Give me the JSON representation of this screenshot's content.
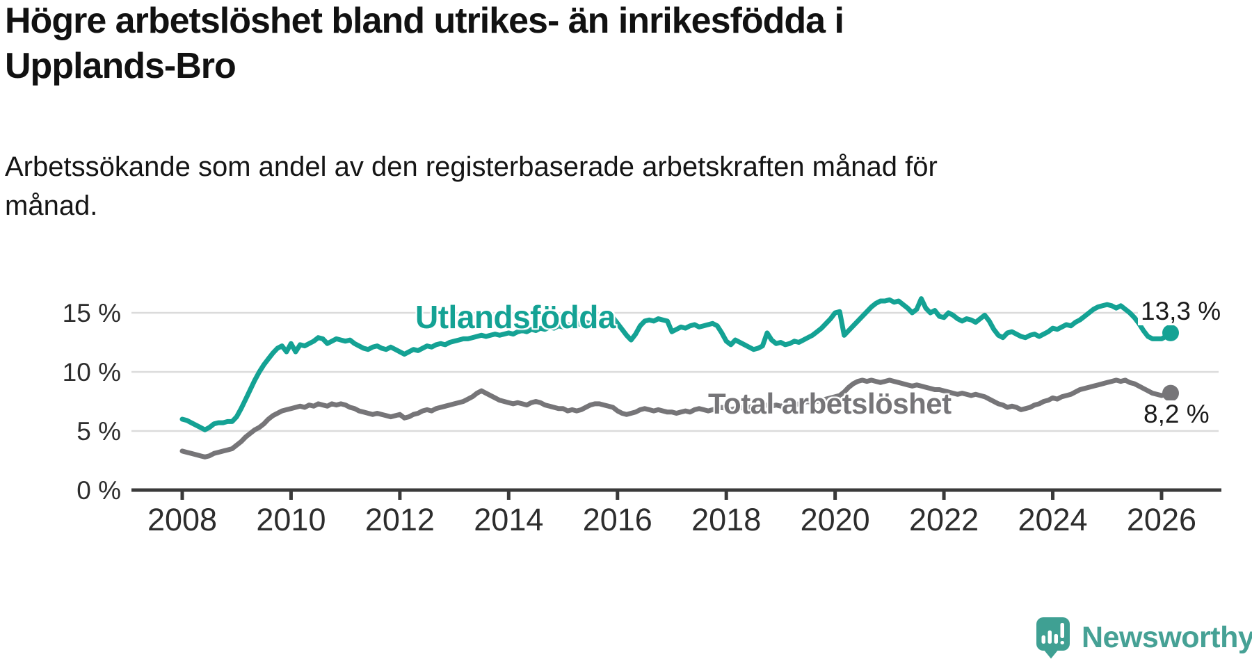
{
  "header": {
    "title_lines": [
      "Högre arbetslöshet bland utrikes- än inrikesfödda i",
      "Upplands-Bro"
    ],
    "subtitle_lines": [
      "Arbetssökande som andel av den registerbaserade arbetskraften månad för",
      "månad."
    ]
  },
  "footer": {
    "brand": "Newsworthy",
    "logo_icon": "newsworthy-speech-bubble-bar-chart-icon"
  },
  "colors": {
    "foreign_born_line": "#14A294",
    "total_line": "#767578",
    "brand": "#46A195",
    "grid": "#DBDBDB",
    "axis": "#3A3A3A",
    "tick_text": "#2D2D2D",
    "text": "#151515"
  },
  "chart_data": {
    "type": "line",
    "frequency": "monthly",
    "x_start": "2008-01",
    "x_end": "2026-03",
    "ylabel": "",
    "xlabel": "",
    "unit": "percent",
    "ylim": [
      0,
      16.5
    ],
    "grid": "horizontal",
    "legend_position": "inline-labels",
    "yticks": [
      {
        "value": 0,
        "label": "0 %"
      },
      {
        "value": 5,
        "label": "5 %"
      },
      {
        "value": 10,
        "label": "10 %"
      },
      {
        "value": 15,
        "label": "15 %"
      }
    ],
    "xticks": [
      {
        "year": 2008,
        "label": "2008"
      },
      {
        "year": 2010,
        "label": "2010"
      },
      {
        "year": 2012,
        "label": "2012"
      },
      {
        "year": 2014,
        "label": "2014"
      },
      {
        "year": 2016,
        "label": "2016"
      },
      {
        "year": 2018,
        "label": "2018"
      },
      {
        "year": 2020,
        "label": "2020"
      },
      {
        "year": 2022,
        "label": "2022"
      },
      {
        "year": 2024,
        "label": "2024"
      },
      {
        "year": 2026,
        "label": "2026"
      }
    ],
    "series": [
      {
        "name": "Utlandsfödda",
        "color": "#14A294",
        "end_label": "13,3 %",
        "end_value": 13.3,
        "values": [
          6.0,
          5.9,
          5.7,
          5.5,
          5.3,
          5.1,
          5.3,
          5.6,
          5.7,
          5.7,
          5.8,
          5.8,
          6.2,
          6.9,
          7.7,
          8.5,
          9.3,
          10.0,
          10.6,
          11.1,
          11.6,
          12.0,
          12.2,
          11.7,
          12.4,
          11.7,
          12.3,
          12.2,
          12.4,
          12.6,
          12.9,
          12.8,
          12.4,
          12.6,
          12.8,
          12.7,
          12.6,
          12.7,
          12.4,
          12.2,
          12.0,
          11.9,
          12.1,
          12.2,
          12.0,
          11.9,
          12.1,
          11.9,
          11.7,
          11.5,
          11.7,
          11.9,
          11.8,
          12.0,
          12.2,
          12.1,
          12.3,
          12.4,
          12.3,
          12.5,
          12.6,
          12.7,
          12.8,
          12.8,
          12.9,
          13.0,
          13.1,
          13.0,
          13.1,
          13.2,
          13.1,
          13.2,
          13.3,
          13.2,
          13.4,
          13.5,
          13.4,
          13.6,
          13.5,
          13.7,
          13.6,
          13.8,
          13.7,
          13.9,
          13.8,
          14.0,
          13.9,
          14.1,
          14.0,
          14.2,
          14.1,
          14.3,
          14.2,
          14.4,
          14.5,
          14.6,
          14.1,
          13.6,
          13.1,
          12.7,
          13.2,
          13.9,
          14.3,
          14.4,
          14.3,
          14.5,
          14.4,
          14.3,
          13.4,
          13.6,
          13.8,
          13.7,
          13.9,
          14.0,
          13.8,
          13.9,
          14.0,
          14.1,
          13.9,
          13.3,
          12.6,
          12.3,
          12.7,
          12.5,
          12.3,
          12.1,
          11.9,
          12.0,
          12.2,
          13.3,
          12.7,
          12.4,
          12.5,
          12.3,
          12.4,
          12.6,
          12.5,
          12.7,
          12.9,
          13.1,
          13.4,
          13.7,
          14.1,
          14.5,
          15.0,
          15.1,
          13.1,
          13.5,
          13.9,
          14.3,
          14.7,
          15.1,
          15.5,
          15.8,
          16.0,
          16.0,
          16.1,
          15.9,
          16.0,
          15.7,
          15.4,
          15.0,
          15.3,
          16.2,
          15.4,
          15.0,
          15.2,
          14.7,
          14.6,
          15.0,
          14.8,
          14.5,
          14.3,
          14.5,
          14.4,
          14.2,
          14.5,
          14.8,
          14.3,
          13.6,
          13.1,
          12.9,
          13.3,
          13.4,
          13.2,
          13.0,
          12.9,
          13.1,
          13.2,
          13.0,
          13.2,
          13.4,
          13.7,
          13.6,
          13.8,
          14.0,
          13.9,
          14.2,
          14.4,
          14.7,
          15.0,
          15.3,
          15.5,
          15.6,
          15.7,
          15.6,
          15.4,
          15.6,
          15.3,
          15.0,
          14.6,
          14.1,
          13.5,
          13.0,
          12.8,
          12.8,
          12.8,
          13.0,
          13.3
        ]
      },
      {
        "name": "Total arbetslöshet",
        "color": "#767578",
        "end_label": "8,2 %",
        "end_value": 8.2,
        "values": [
          3.3,
          3.2,
          3.1,
          3.0,
          2.9,
          2.8,
          2.9,
          3.1,
          3.2,
          3.3,
          3.4,
          3.5,
          3.8,
          4.1,
          4.5,
          4.8,
          5.1,
          5.3,
          5.6,
          6.0,
          6.3,
          6.5,
          6.7,
          6.8,
          6.9,
          7.0,
          7.1,
          7.0,
          7.2,
          7.1,
          7.3,
          7.2,
          7.1,
          7.3,
          7.2,
          7.3,
          7.2,
          7.0,
          6.9,
          6.7,
          6.6,
          6.5,
          6.4,
          6.5,
          6.4,
          6.3,
          6.2,
          6.3,
          6.4,
          6.1,
          6.2,
          6.4,
          6.5,
          6.7,
          6.8,
          6.7,
          6.9,
          7.0,
          7.1,
          7.2,
          7.3,
          7.4,
          7.5,
          7.7,
          7.9,
          8.2,
          8.4,
          8.2,
          8.0,
          7.8,
          7.6,
          7.5,
          7.4,
          7.3,
          7.4,
          7.3,
          7.2,
          7.4,
          7.5,
          7.4,
          7.2,
          7.1,
          7.0,
          6.9,
          6.9,
          6.7,
          6.8,
          6.7,
          6.8,
          7.0,
          7.2,
          7.3,
          7.3,
          7.2,
          7.1,
          7.0,
          6.7,
          6.5,
          6.4,
          6.5,
          6.6,
          6.8,
          6.9,
          6.8,
          6.7,
          6.8,
          6.7,
          6.6,
          6.6,
          6.5,
          6.6,
          6.7,
          6.6,
          6.8,
          6.9,
          6.8,
          6.7,
          6.8,
          6.9,
          7.0,
          6.9,
          6.8,
          6.9,
          7.0,
          6.9,
          7.0,
          7.1,
          7.0,
          7.1,
          7.2,
          7.1,
          7.2,
          7.1,
          7.2,
          7.3,
          7.2,
          7.3,
          7.4,
          7.5,
          7.4,
          7.5,
          7.6,
          7.7,
          7.8,
          7.9,
          8.0,
          8.3,
          8.7,
          9.0,
          9.2,
          9.3,
          9.2,
          9.3,
          9.2,
          9.1,
          9.2,
          9.3,
          9.2,
          9.1,
          9.0,
          8.9,
          8.8,
          8.9,
          8.8,
          8.7,
          8.6,
          8.5,
          8.5,
          8.4,
          8.3,
          8.2,
          8.1,
          8.2,
          8.1,
          8.0,
          8.1,
          8.0,
          7.9,
          7.7,
          7.5,
          7.3,
          7.2,
          7.0,
          7.1,
          7.0,
          6.8,
          6.9,
          7.0,
          7.2,
          7.3,
          7.5,
          7.6,
          7.8,
          7.7,
          7.9,
          8.0,
          8.1,
          8.3,
          8.5,
          8.6,
          8.7,
          8.8,
          8.9,
          9.0,
          9.1,
          9.2,
          9.3,
          9.2,
          9.3,
          9.1,
          9.0,
          8.8,
          8.6,
          8.4,
          8.2,
          8.1,
          8.0,
          8.1,
          8.2
        ]
      }
    ]
  }
}
